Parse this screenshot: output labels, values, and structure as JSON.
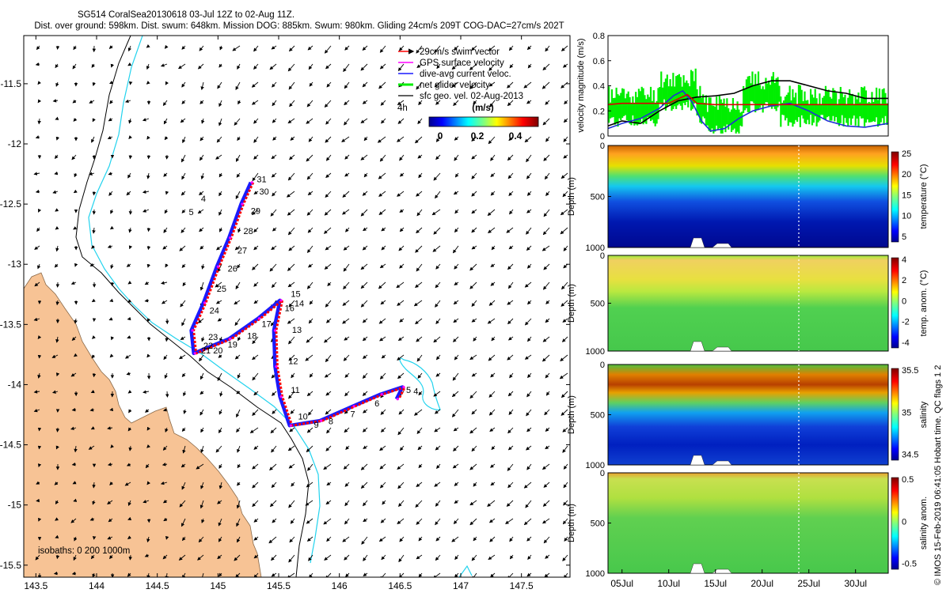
{
  "header": {
    "line1": "SG514 CoralSea20130618 03-Jul 12Z to 02-Aug 11Z.",
    "line2": "Dist. over ground: 598km. Dist. swum: 648km. Mission DOG: 885km. Swum: 980km. Gliding 24cm/s 209T COG-DAC=27cm/s 202T"
  },
  "side_label": "© IMOS 15-Feb-2019 06:41:05 Hobart time. QC flags 1  2",
  "colors": {
    "land": "#f7c395",
    "isobath_200": "#000000",
    "isobath_1000": "#22d3ee",
    "track_red": "#ff0000",
    "track_blue": "#1a1aff",
    "net_green": "#00ee00",
    "dac_blue": "#1f2fd6",
    "mag_red": "#dd0000"
  },
  "chart_data": [
    {
      "type": "scatter",
      "name": "map",
      "xticks": [
        "143.5",
        "144",
        "144.5",
        "145",
        "145.5",
        "146",
        "146.5",
        "147",
        "147.5"
      ],
      "yticks": [
        "-11.5",
        "-12",
        "-12.5",
        "-13",
        "-13.5",
        "-14",
        "-14.5",
        "-15",
        "-15.5"
      ],
      "xlim": [
        143.4,
        147.9
      ],
      "ylim": [
        -15.6,
        -11.1
      ],
      "legend": {
        "position": "top-right",
        "entries": [
          {
            "label": "29cm/s swim vector",
            "color": "#ff0000"
          },
          {
            "label": "GPS surface velocity",
            "color": "#ff00ff"
          },
          {
            "label": "dive-avg current veloc.",
            "color": "#1a1aff"
          },
          {
            "label": "net glider velocity",
            "color": "#00ee00"
          },
          {
            "label": "sfc geo. vel. 02-Aug-2013",
            "color": "#000000"
          }
        ],
        "extra": "4h"
      },
      "colorbar": {
        "title": "(m/s)",
        "ticks": [
          "0",
          "0.2",
          "0.4"
        ],
        "range": [
          0,
          0.5
        ]
      },
      "isobaths_label": "isobaths: 0   200  1000m",
      "track": [
        [
          145.28,
          -12.32
        ],
        [
          145.2,
          -12.5
        ],
        [
          145.1,
          -12.78
        ],
        [
          145.0,
          -13.02
        ],
        [
          144.89,
          -13.32
        ],
        [
          144.79,
          -13.55
        ],
        [
          144.81,
          -13.74
        ],
        [
          145.1,
          -13.62
        ],
        [
          145.34,
          -13.45
        ],
        [
          145.52,
          -13.3
        ],
        [
          145.47,
          -13.55
        ],
        [
          145.48,
          -13.85
        ],
        [
          145.52,
          -14.1
        ],
        [
          145.6,
          -14.34
        ],
        [
          145.85,
          -14.3
        ],
        [
          146.12,
          -14.18
        ],
        [
          146.35,
          -14.08
        ],
        [
          146.53,
          -14.02
        ],
        [
          146.48,
          -14.12
        ]
      ],
      "day_labels": [
        {
          "text": "31",
          "lon": 145.32,
          "lat": -12.32
        },
        {
          "text": "30",
          "lon": 145.34,
          "lat": -12.42
        },
        {
          "text": "29",
          "lon": 145.27,
          "lat": -12.58
        },
        {
          "text": "28",
          "lon": 145.21,
          "lat": -12.75
        },
        {
          "text": "27",
          "lon": 145.16,
          "lat": -12.91
        },
        {
          "text": "26",
          "lon": 145.08,
          "lat": -13.06
        },
        {
          "text": "25",
          "lon": 144.99,
          "lat": -13.23
        },
        {
          "text": "24",
          "lon": 144.93,
          "lat": -13.41
        },
        {
          "text": "23",
          "lon": 144.92,
          "lat": -13.63
        },
        {
          "text": "22",
          "lon": 144.88,
          "lat": -13.7
        },
        {
          "text": "21",
          "lon": 144.86,
          "lat": -13.74
        },
        {
          "text": "20",
          "lon": 144.96,
          "lat": -13.74
        },
        {
          "text": "19",
          "lon": 145.08,
          "lat": -13.69
        },
        {
          "text": "18",
          "lon": 145.24,
          "lat": -13.62
        },
        {
          "text": "17",
          "lon": 145.36,
          "lat": -13.52
        },
        {
          "text": "16",
          "lon": 145.55,
          "lat": -13.39
        },
        {
          "text": "15",
          "lon": 145.6,
          "lat": -13.27
        },
        {
          "text": "14",
          "lon": 145.63,
          "lat": -13.35
        },
        {
          "text": "13",
          "lon": 145.61,
          "lat": -13.57
        },
        {
          "text": "12",
          "lon": 145.58,
          "lat": -13.83
        },
        {
          "text": "11",
          "lon": 145.6,
          "lat": -14.07
        },
        {
          "text": "10",
          "lon": 145.66,
          "lat": -14.29
        },
        {
          "text": "9",
          "lon": 145.79,
          "lat": -14.36
        },
        {
          "text": "8",
          "lon": 145.91,
          "lat": -14.33
        },
        {
          "text": "7",
          "lon": 146.09,
          "lat": -14.27
        },
        {
          "text": "6",
          "lon": 146.29,
          "lat": -14.18
        },
        {
          "text": "5",
          "lon": 146.55,
          "lat": -14.07
        },
        {
          "text": "4",
          "lon": 146.61,
          "lat": -14.08
        },
        {
          "text": "4",
          "lon": 144.86,
          "lat": -12.48
        },
        {
          "text": "5",
          "lon": 144.76,
          "lat": -12.59
        }
      ]
    },
    {
      "type": "line",
      "name": "velocity",
      "ylabel": "velocity magnitude (m/s)",
      "yticks": [
        "0",
        "0.2",
        "0.4",
        "0.6",
        "0.8"
      ],
      "ylim": [
        0,
        0.8
      ],
      "x_days": [
        3.5,
        33.5
      ],
      "series": [
        {
          "color": "#000000",
          "x": [
            3.5,
            5,
            7,
            9,
            11,
            13,
            15,
            17,
            19,
            21,
            23,
            25,
            27,
            29,
            31,
            33.5
          ],
          "values": [
            0.08,
            0.12,
            0.1,
            0.2,
            0.28,
            0.31,
            0.32,
            0.34,
            0.4,
            0.44,
            0.44,
            0.4,
            0.36,
            0.34,
            0.3,
            0.3
          ]
        },
        {
          "color": "#1f2fd6",
          "x": [
            3.5,
            5,
            7,
            9,
            10.5,
            11.5,
            12.5,
            13.5,
            14.5,
            16,
            17.5,
            19,
            21,
            23,
            25,
            27,
            29,
            31,
            33.5
          ],
          "values": [
            0.06,
            0.1,
            0.14,
            0.22,
            0.32,
            0.36,
            0.27,
            0.12,
            0.04,
            0.06,
            0.14,
            0.2,
            0.24,
            0.26,
            0.2,
            0.12,
            0.08,
            0.07,
            0.1
          ]
        },
        {
          "color": "#dd0000",
          "x": [
            3.5,
            5,
            10,
            12,
            13,
            15,
            20,
            25,
            30,
            33.5
          ],
          "values": [
            0.25,
            0.26,
            0.26,
            0.33,
            0.26,
            0.25,
            0.25,
            0.25,
            0.25,
            0.25
          ]
        }
      ]
    },
    {
      "type": "heatmap",
      "name": "temperature",
      "ylabel": "Depth (m)",
      "cbar_label": "temperature (°C)",
      "yticks": [
        "0",
        "500",
        "1000"
      ],
      "cticks": [
        "25",
        "20",
        "15",
        "10",
        "5"
      ]
    },
    {
      "type": "heatmap",
      "name": "temp-anomaly",
      "ylabel": "Depth (m)",
      "cbar_label": "temp. anom. (°C)",
      "yticks": [
        "0",
        "500",
        "1000"
      ],
      "cticks": [
        "4",
        "2",
        "0",
        "-2",
        "-4"
      ]
    },
    {
      "type": "heatmap",
      "name": "salinity",
      "ylabel": "Depth (m)",
      "cbar_label": "salinity",
      "yticks": [
        "0",
        "500",
        "1000"
      ],
      "cticks": [
        "35.5",
        "35",
        "34.5"
      ]
    },
    {
      "type": "heatmap",
      "name": "salinity-anomaly",
      "ylabel": "Depth (m)",
      "cbar_label": "salinity anom.",
      "yticks": [
        "0",
        "500",
        "1000"
      ],
      "cticks": [
        "0.5",
        "0",
        "-0.5"
      ],
      "xticks": [
        "05Jul",
        "10Jul",
        "15Jul",
        "20Jul",
        "25Jul",
        "30Jul"
      ]
    }
  ]
}
